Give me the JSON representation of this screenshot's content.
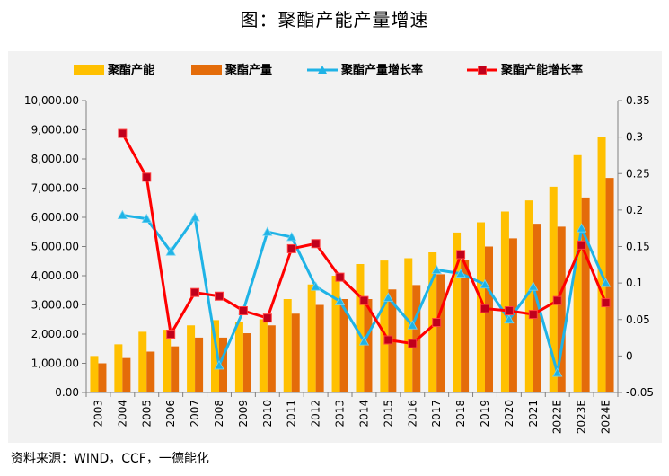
{
  "title": "图：聚酯产能产量增速",
  "source": "资料来源：WIND，CCF，一德能化",
  "chart_data": {
    "type": "bar+line",
    "categories": [
      "2003",
      "2004",
      "2005",
      "2006",
      "2007",
      "2008",
      "2009",
      "2010",
      "2011",
      "2012",
      "2013",
      "2014",
      "2015",
      "2016",
      "2017",
      "2018",
      "2019",
      "2020",
      "2021",
      "2022E",
      "2023E",
      "2024E"
    ],
    "series": [
      {
        "name": "聚酯产能",
        "type": "bar",
        "axis": "left",
        "color": "#ffc000",
        "values": [
          1250,
          1650,
          2080,
          2150,
          2300,
          2480,
          2430,
          2510,
          3200,
          3700,
          4000,
          4400,
          4520,
          4600,
          4800,
          5480,
          5830,
          6200,
          6580,
          7050,
          8130,
          8750
        ]
      },
      {
        "name": "聚酯产量",
        "type": "bar",
        "axis": "left",
        "color": "#e46c0a",
        "values": [
          1000,
          1180,
          1400,
          1580,
          1880,
          1880,
          2030,
          2300,
          2700,
          3000,
          3200,
          3200,
          3530,
          3680,
          4050,
          4550,
          5000,
          5280,
          5780,
          5680,
          6680,
          7350
        ]
      },
      {
        "name": "聚酯产量增长率",
        "type": "line",
        "axis": "right",
        "color": "#1fb3e6",
        "marker": "triangle",
        "values": [
          null,
          0.193,
          0.188,
          0.143,
          0.19,
          -0.013,
          0.062,
          0.17,
          0.163,
          0.095,
          0.075,
          0.02,
          0.08,
          0.042,
          0.118,
          0.113,
          0.098,
          0.05,
          0.095,
          -0.023,
          0.175,
          0.1
        ]
      },
      {
        "name": "聚酯产能增长率",
        "type": "line",
        "axis": "right",
        "color": "#ff0000",
        "marker": "square",
        "values": [
          null,
          0.305,
          0.245,
          0.03,
          0.087,
          0.082,
          0.062,
          0.052,
          0.147,
          0.154,
          0.108,
          0.076,
          0.022,
          0.017,
          0.046,
          0.139,
          0.065,
          0.062,
          0.057,
          0.076,
          0.152,
          0.073
        ]
      }
    ],
    "y_left": {
      "min": 0,
      "max": 10000,
      "step": 1000,
      "tick_labels": [
        "0.00",
        "1,000.00",
        "2,000.00",
        "3,000.00",
        "4,000.00",
        "5,000.00",
        "6,000.00",
        "7,000.00",
        "8,000.00",
        "9,000.00",
        "10,000.00"
      ]
    },
    "y_right": {
      "min": -0.05,
      "max": 0.35,
      "step": 0.05,
      "tick_labels": [
        "-0.05",
        "0",
        "0.05",
        "0.1",
        "0.15",
        "0.2",
        "0.25",
        "0.3",
        "0.35"
      ]
    },
    "legend_position": "top",
    "grid": false
  }
}
